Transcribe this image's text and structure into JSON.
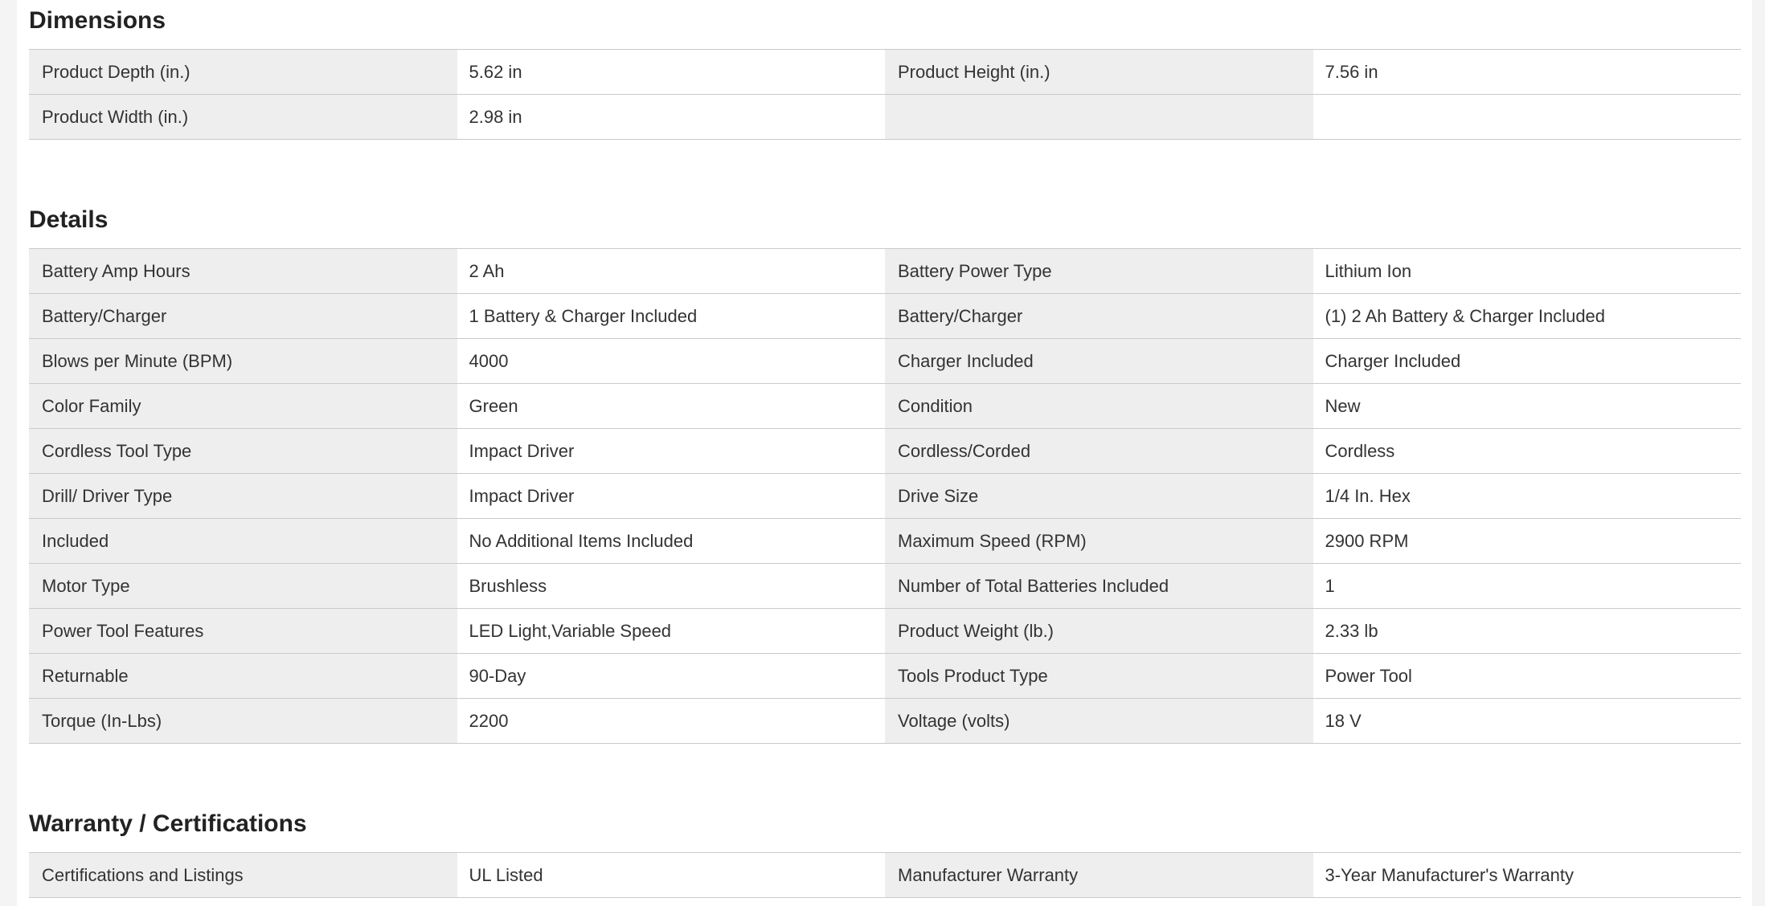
{
  "colors": {
    "page_bg": "#f4f4f4",
    "content_bg": "#ffffff",
    "label_bg": "#eeeeee",
    "border_color": "#cacaca",
    "text_color": "#333333",
    "title_color": "#222222"
  },
  "sections": [
    {
      "title": "Dimensions",
      "rows": [
        {
          "pairs": [
            {
              "label": "Product Depth (in.)",
              "value": "5.62 in"
            },
            {
              "label": "Product Height (in.)",
              "value": "7.56 in"
            }
          ]
        },
        {
          "pairs": [
            {
              "label": "Product Width (in.)",
              "value": "2.98 in"
            },
            {
              "label": "",
              "value": ""
            }
          ]
        }
      ]
    },
    {
      "title": "Details",
      "rows": [
        {
          "pairs": [
            {
              "label": "Battery Amp Hours",
              "value": "2 Ah"
            },
            {
              "label": "Battery Power Type",
              "value": "Lithium Ion"
            }
          ]
        },
        {
          "pairs": [
            {
              "label": "Battery/Charger",
              "value": "1 Battery & Charger Included"
            },
            {
              "label": "Battery/Charger",
              "value": "(1) 2 Ah Battery & Charger Included"
            }
          ]
        },
        {
          "pairs": [
            {
              "label": "Blows per Minute (BPM)",
              "value": "4000"
            },
            {
              "label": "Charger Included",
              "value": "Charger Included"
            }
          ]
        },
        {
          "pairs": [
            {
              "label": "Color Family",
              "value": "Green"
            },
            {
              "label": "Condition",
              "value": "New"
            }
          ]
        },
        {
          "pairs": [
            {
              "label": "Cordless Tool Type",
              "value": "Impact Driver"
            },
            {
              "label": "Cordless/Corded",
              "value": "Cordless"
            }
          ]
        },
        {
          "pairs": [
            {
              "label": "Drill/ Driver Type",
              "value": "Impact Driver"
            },
            {
              "label": "Drive Size",
              "value": "1/4 In. Hex"
            }
          ]
        },
        {
          "pairs": [
            {
              "label": "Included",
              "value": "No Additional Items Included"
            },
            {
              "label": "Maximum Speed (RPM)",
              "value": "2900 RPM"
            }
          ]
        },
        {
          "pairs": [
            {
              "label": "Motor Type",
              "value": "Brushless"
            },
            {
              "label": "Number of Total Batteries Included",
              "value": "1"
            }
          ]
        },
        {
          "pairs": [
            {
              "label": "Power Tool Features",
              "value": "LED Light,Variable Speed"
            },
            {
              "label": "Product Weight (lb.)",
              "value": "2.33 lb"
            }
          ]
        },
        {
          "pairs": [
            {
              "label": "Returnable",
              "value": "90-Day"
            },
            {
              "label": "Tools Product Type",
              "value": "Power Tool"
            }
          ]
        },
        {
          "pairs": [
            {
              "label": "Torque (In-Lbs)",
              "value": "2200"
            },
            {
              "label": "Voltage (volts)",
              "value": "18 V"
            }
          ]
        }
      ]
    },
    {
      "title": "Warranty / Certifications",
      "rows": [
        {
          "pairs": [
            {
              "label": "Certifications and Listings",
              "value": "UL Listed"
            },
            {
              "label": "Manufacturer Warranty",
              "value": "3-Year Manufacturer's Warranty"
            }
          ]
        }
      ]
    }
  ]
}
